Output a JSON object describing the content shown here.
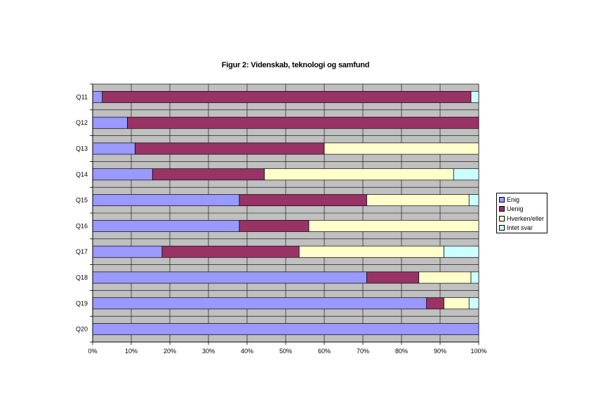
{
  "chart_data": {
    "type": "bar",
    "orientation": "horizontal",
    "stacked": "percent",
    "title": "Figur 2: Videnskab, teknologi og samfund",
    "categories": [
      "Q11",
      "Q12",
      "Q13",
      "Q14",
      "Q15",
      "Q16",
      "Q17",
      "Q18",
      "Q19",
      "Q20"
    ],
    "series": [
      {
        "name": "Enig",
        "color": "#9999ff",
        "values": [
          2.5,
          9,
          11,
          15.5,
          38,
          38,
          18,
          71,
          86.5,
          100
        ]
      },
      {
        "name": "Uenig",
        "color": "#993366",
        "values": [
          95.5,
          91,
          49,
          29,
          33,
          18,
          35.5,
          13.5,
          4.5,
          0
        ]
      },
      {
        "name": "Hverken/eller",
        "color": "#ffffcc",
        "values": [
          0,
          0,
          40,
          49,
          26.5,
          44,
          37.5,
          13.5,
          6.5,
          0
        ]
      },
      {
        "name": "Intet svar",
        "color": "#ccffff",
        "values": [
          2,
          0,
          0,
          6.5,
          2.5,
          0,
          9,
          2,
          2.5,
          0
        ]
      }
    ],
    "x_ticks": [
      "0%",
      "10%",
      "20%",
      "30%",
      "40%",
      "50%",
      "60%",
      "70%",
      "80%",
      "90%",
      "100%"
    ],
    "xlim": [
      0,
      100
    ],
    "grid": true,
    "plot_background": "#c0c0c0",
    "legend_position": "right"
  }
}
